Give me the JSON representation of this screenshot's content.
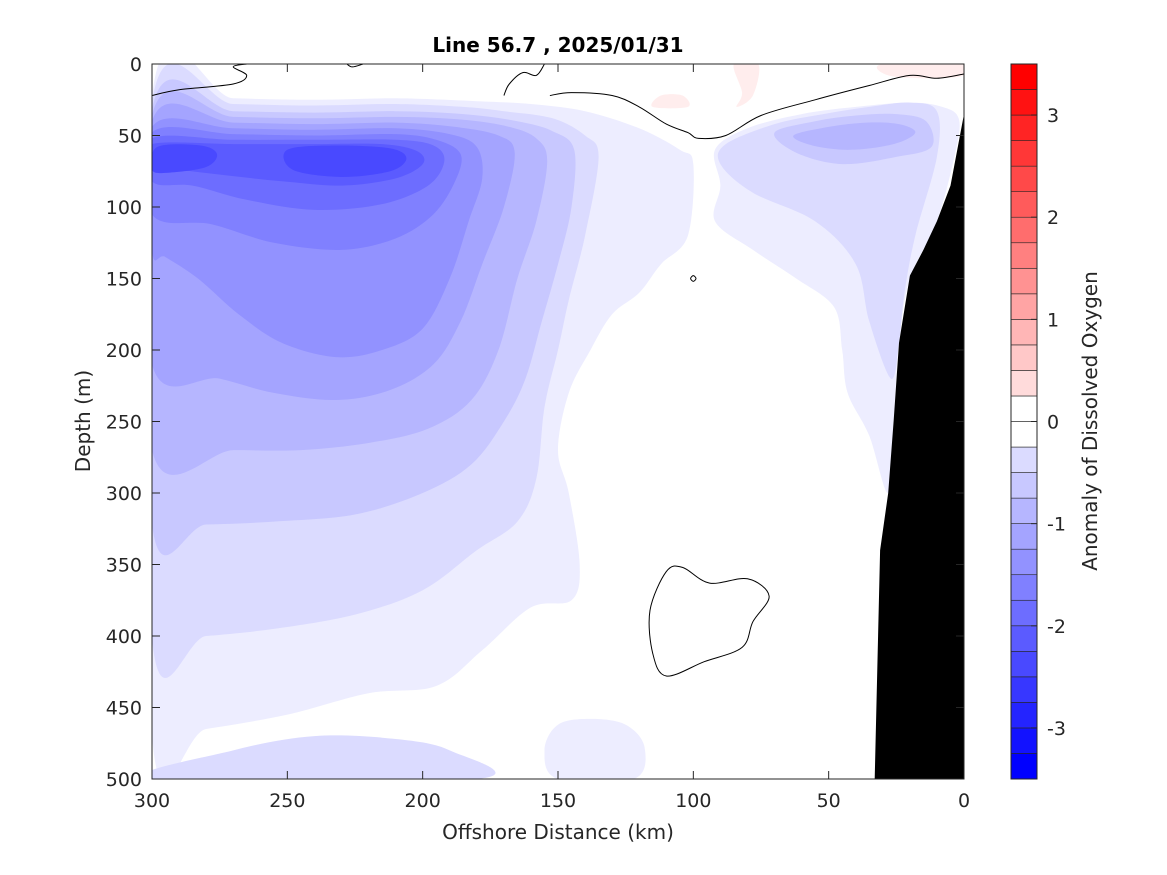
{
  "chart_data": {
    "type": "contour",
    "title": "Line 56.7 , 2025/01/31",
    "xlabel": "Offshore Distance (km)",
    "ylabel": "Depth (m)",
    "xlim": [
      300,
      0
    ],
    "ylim": [
      0,
      500
    ],
    "x_reversed": true,
    "y_reversed": true,
    "x_ticks": [
      300,
      250,
      200,
      150,
      100,
      50,
      0
    ],
    "x_tick_labels": [
      "300",
      "250",
      "200",
      "150",
      "100",
      "50",
      "0"
    ],
    "y_ticks": [
      0,
      50,
      100,
      150,
      200,
      250,
      300,
      350,
      400,
      450,
      500
    ],
    "y_tick_labels": [
      "0",
      "50",
      "100",
      "150",
      "200",
      "250",
      "300",
      "350",
      "400",
      "450",
      "500"
    ],
    "colorbar": {
      "label": "Anomaly of Dissolved Oxygen",
      "range": [
        -3.5,
        3.5
      ],
      "step": 0.25,
      "ticks": [
        3,
        2,
        1,
        0,
        -1,
        -2,
        -3
      ],
      "tick_labels": [
        "3",
        "2",
        "1",
        "0",
        "-1",
        "-2",
        "-3"
      ],
      "negative_color": "#0000ff",
      "positive_color": "#ff0000",
      "zero_color": "#ffffff"
    },
    "bathymetry_color": "#000000",
    "bathymetry": [
      [
        33,
        500
      ],
      [
        31,
        340
      ],
      [
        28,
        300
      ],
      [
        26,
        250
      ],
      [
        24,
        195
      ],
      [
        20,
        148
      ],
      [
        15,
        130
      ],
      [
        10,
        110
      ],
      [
        5,
        85
      ],
      [
        2,
        55
      ],
      [
        0,
        35
      ],
      [
        0,
        500
      ]
    ],
    "fields": [
      {
        "level": -0.25,
        "points": [
          [
            300,
            22
          ],
          [
            270,
            24
          ],
          [
            240,
            25
          ],
          [
            210,
            24
          ],
          [
            180,
            26
          ],
          [
            160,
            28
          ],
          [
            140,
            33
          ],
          [
            120,
            45
          ],
          [
            105,
            60
          ],
          [
            100,
            70
          ],
          [
            102,
            120
          ],
          [
            112,
            140
          ],
          [
            120,
            160
          ],
          [
            130,
            175
          ],
          [
            138,
            200
          ],
          [
            146,
            230
          ],
          [
            150,
            270
          ],
          [
            146,
            300
          ],
          [
            142,
            350
          ],
          [
            145,
            375
          ],
          [
            160,
            380
          ],
          [
            178,
            410
          ],
          [
            195,
            435
          ],
          [
            220,
            440
          ],
          [
            250,
            455
          ],
          [
            280,
            465
          ],
          [
            300,
            470
          ]
        ]
      },
      {
        "level": -0.25,
        "points": [
          [
            92,
            60
          ],
          [
            80,
            45
          ],
          [
            60,
            35
          ],
          [
            40,
            30
          ],
          [
            20,
            27
          ],
          [
            8,
            30
          ],
          [
            2,
            38
          ],
          [
            3,
            60
          ],
          [
            10,
            110
          ],
          [
            20,
            150
          ],
          [
            24,
            195
          ],
          [
            26,
            250
          ],
          [
            28,
            300
          ],
          [
            35,
            260
          ],
          [
            43,
            230
          ],
          [
            45,
            200
          ],
          [
            48,
            170
          ],
          [
            62,
            150
          ],
          [
            78,
            130
          ],
          [
            92,
            110
          ],
          [
            90,
            85
          ]
        ]
      },
      {
        "level": -0.25,
        "points": [
          [
            150,
            500
          ],
          [
            155,
            480
          ],
          [
            150,
            462
          ],
          [
            138,
            458
          ],
          [
            125,
            462
          ],
          [
            118,
            478
          ],
          [
            122,
            500
          ]
        ]
      },
      {
        "level": -0.5,
        "points": [
          [
            300,
            27
          ],
          [
            270,
            28
          ],
          [
            240,
            29
          ],
          [
            210,
            28
          ],
          [
            185,
            30
          ],
          [
            170,
            33
          ],
          [
            152,
            38
          ],
          [
            140,
            50
          ],
          [
            135,
            65
          ],
          [
            140,
            120
          ],
          [
            146,
            165
          ],
          [
            150,
            200
          ],
          [
            155,
            240
          ],
          [
            158,
            290
          ],
          [
            165,
            320
          ],
          [
            180,
            340
          ],
          [
            200,
            368
          ],
          [
            225,
            385
          ],
          [
            255,
            395
          ],
          [
            280,
            400
          ],
          [
            300,
            402
          ]
        ]
      },
      {
        "level": -0.5,
        "points": [
          [
            88,
            56
          ],
          [
            70,
            42
          ],
          [
            52,
            35
          ],
          [
            35,
            30
          ],
          [
            20,
            27
          ],
          [
            10,
            33
          ],
          [
            10,
            65
          ],
          [
            18,
            120
          ],
          [
            22,
            160
          ],
          [
            24,
            195
          ],
          [
            27,
            220
          ],
          [
            35,
            180
          ],
          [
            40,
            140
          ],
          [
            55,
            110
          ],
          [
            78,
            90
          ],
          [
            90,
            70
          ]
        ]
      },
      {
        "level": -0.5,
        "points": [
          [
            300,
            500
          ],
          [
            270,
            480
          ],
          [
            240,
            470
          ],
          [
            210,
            472
          ],
          [
            190,
            480
          ],
          [
            180,
            500
          ]
        ]
      },
      {
        "level": -0.75,
        "points": [
          [
            300,
            32
          ],
          [
            270,
            33
          ],
          [
            240,
            34
          ],
          [
            210,
            33
          ],
          [
            185,
            35
          ],
          [
            165,
            40
          ],
          [
            152,
            47
          ],
          [
            144,
            60
          ],
          [
            145,
            100
          ],
          [
            150,
            140
          ],
          [
            156,
            180
          ],
          [
            162,
            220
          ],
          [
            170,
            250
          ],
          [
            182,
            280
          ],
          [
            200,
            300
          ],
          [
            225,
            315
          ],
          [
            255,
            320
          ],
          [
            280,
            322
          ],
          [
            300,
            322
          ]
        ]
      },
      {
        "level": -0.75,
        "points": [
          [
            70,
            48
          ],
          [
            55,
            40
          ],
          [
            40,
            36
          ],
          [
            25,
            35
          ],
          [
            14,
            40
          ],
          [
            12,
            58
          ],
          [
            25,
            65
          ],
          [
            45,
            70
          ],
          [
            62,
            62
          ]
        ]
      },
      {
        "level": -1,
        "points": [
          [
            300,
            36
          ],
          [
            270,
            37
          ],
          [
            240,
            38
          ],
          [
            210,
            37
          ],
          [
            185,
            39
          ],
          [
            168,
            44
          ],
          [
            158,
            52
          ],
          [
            154,
            68
          ],
          [
            158,
            110
          ],
          [
            165,
            150
          ],
          [
            172,
            200
          ],
          [
            182,
            235
          ],
          [
            198,
            255
          ],
          [
            220,
            265
          ],
          [
            245,
            270
          ],
          [
            270,
            270
          ],
          [
            300,
            270
          ]
        ]
      },
      {
        "level": -1,
        "points": [
          [
            63,
            50
          ],
          [
            50,
            44
          ],
          [
            36,
            41
          ],
          [
            24,
            42
          ],
          [
            18,
            48
          ],
          [
            26,
            56
          ],
          [
            42,
            60
          ],
          [
            56,
            57
          ]
        ]
      },
      {
        "level": -1.25,
        "points": [
          [
            300,
            40
          ],
          [
            270,
            41
          ],
          [
            240,
            42
          ],
          [
            210,
            41
          ],
          [
            188,
            44
          ],
          [
            172,
            50
          ],
          [
            166,
            62
          ],
          [
            170,
            100
          ],
          [
            178,
            140
          ],
          [
            186,
            180
          ],
          [
            196,
            210
          ],
          [
            212,
            228
          ],
          [
            232,
            235
          ],
          [
            255,
            230
          ],
          [
            275,
            220
          ],
          [
            300,
            210
          ]
        ]
      },
      {
        "level": -1.5,
        "points": [
          [
            300,
            44
          ],
          [
            270,
            45
          ],
          [
            240,
            46
          ],
          [
            210,
            45
          ],
          [
            190,
            49
          ],
          [
            180,
            58
          ],
          [
            178,
            80
          ],
          [
            183,
            110
          ],
          [
            190,
            150
          ],
          [
            200,
            185
          ],
          [
            215,
            200
          ],
          [
            232,
            205
          ],
          [
            252,
            195
          ],
          [
            268,
            175
          ],
          [
            283,
            150
          ],
          [
            295,
            135
          ],
          [
            300,
            130
          ]
        ]
      },
      {
        "level": -1.75,
        "points": [
          [
            300,
            48
          ],
          [
            270,
            49
          ],
          [
            240,
            50
          ],
          [
            210,
            49
          ],
          [
            195,
            53
          ],
          [
            186,
            63
          ],
          [
            188,
            82
          ],
          [
            196,
            105
          ],
          [
            210,
            122
          ],
          [
            230,
            130
          ],
          [
            255,
            125
          ],
          [
            278,
            112
          ],
          [
            300,
            105
          ]
        ]
      },
      {
        "level": -2,
        "points": [
          [
            300,
            52
          ],
          [
            270,
            53
          ],
          [
            240,
            53
          ],
          [
            210,
            53
          ],
          [
            196,
            57
          ],
          [
            192,
            68
          ],
          [
            198,
            85
          ],
          [
            215,
            98
          ],
          [
            240,
            102
          ],
          [
            265,
            95
          ],
          [
            285,
            85
          ],
          [
            300,
            82
          ]
        ]
      },
      {
        "level": -2.25,
        "points": [
          [
            300,
            56
          ],
          [
            270,
            56
          ],
          [
            242,
            56
          ],
          [
            215,
            56
          ],
          [
            202,
            61
          ],
          [
            200,
            70
          ],
          [
            210,
            80
          ],
          [
            230,
            85
          ],
          [
            252,
            82
          ],
          [
            272,
            78
          ],
          [
            290,
            74
          ],
          [
            300,
            72
          ]
        ]
      },
      {
        "level": -2.5,
        "points": [
          [
            298,
            58
          ],
          [
            282,
            57
          ],
          [
            276,
            63
          ],
          [
            280,
            72
          ],
          [
            294,
            76
          ],
          [
            300,
            74
          ]
        ]
      },
      {
        "level": -2.5,
        "points": [
          [
            250,
            60
          ],
          [
            232,
            57
          ],
          [
            212,
            59
          ],
          [
            206,
            66
          ],
          [
            212,
            75
          ],
          [
            230,
            79
          ],
          [
            248,
            74
          ]
        ]
      },
      {
        "level": 0.25,
        "points": [
          [
            85,
            0
          ],
          [
            82,
            20
          ],
          [
            84,
            30
          ],
          [
            78,
            22
          ],
          [
            76,
            0
          ]
        ]
      },
      {
        "level": 0.25,
        "points": [
          [
            30,
            0
          ],
          [
            28,
            8
          ],
          [
            12,
            10
          ],
          [
            0,
            8
          ],
          [
            0,
            0
          ]
        ]
      },
      {
        "level": 0.25,
        "points": [
          [
            115,
            30
          ],
          [
            112,
            22
          ],
          [
            104,
            22
          ],
          [
            102,
            30
          ]
        ]
      }
    ],
    "zero_contours": [
      [
        [
          300,
          22
        ],
        [
          290,
          18
        ],
        [
          270,
          14
        ],
        [
          265,
          8
        ],
        [
          270,
          2
        ],
        [
          265,
          0
        ]
      ],
      [
        [
          170,
          22
        ],
        [
          168,
          14
        ],
        [
          163,
          6
        ],
        [
          158,
          8
        ],
        [
          155,
          0
        ]
      ],
      [
        [
          153,
          22
        ],
        [
          145,
          20
        ],
        [
          130,
          22
        ],
        [
          120,
          30
        ],
        [
          110,
          42
        ],
        [
          102,
          48
        ],
        [
          98,
          52
        ],
        [
          88,
          50
        ],
        [
          75,
          36
        ],
        [
          55,
          25
        ],
        [
          35,
          15
        ],
        [
          20,
          8
        ],
        [
          10,
          10
        ],
        [
          0,
          7
        ]
      ],
      [
        [
          110,
          355
        ],
        [
          104,
          352
        ],
        [
          94,
          363
        ],
        [
          80,
          360
        ],
        [
          72,
          372
        ],
        [
          78,
          390
        ],
        [
          82,
          408
        ],
        [
          96,
          418
        ],
        [
          110,
          428
        ],
        [
          115,
          412
        ],
        [
          116,
          382
        ]
      ],
      [
        [
          101,
          150
        ],
        [
          100,
          148
        ],
        [
          99,
          150
        ],
        [
          100,
          152
        ]
      ],
      [
        [
          228,
          0
        ],
        [
          226,
          2
        ],
        [
          222,
          0
        ]
      ]
    ]
  }
}
